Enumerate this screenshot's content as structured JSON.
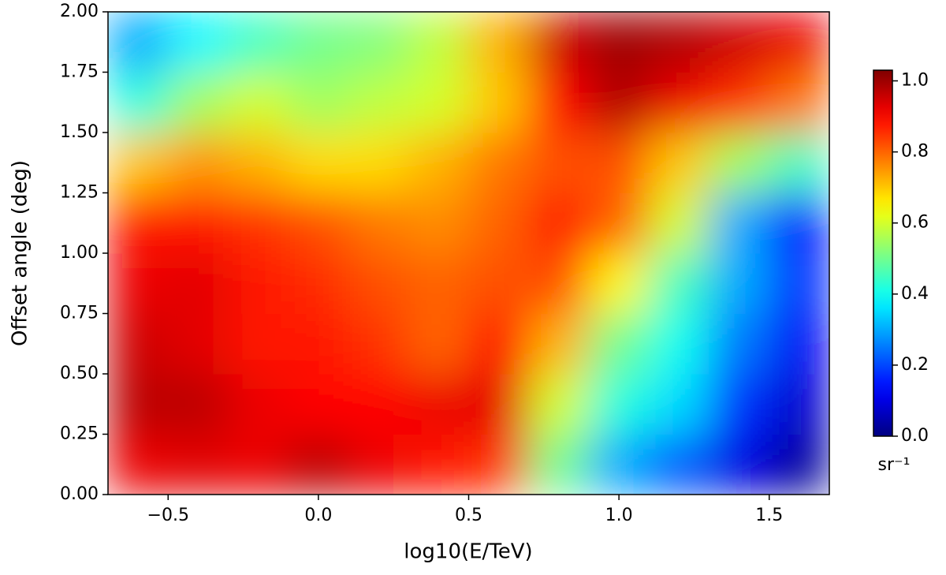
{
  "chart_data": {
    "type": "heatmap",
    "xlabel": "log10(E/TeV)",
    "ylabel": "Offset angle (deg)",
    "colorbar_label": "sr⁻¹",
    "colormap": "jet",
    "x": [
      -0.6,
      -0.4,
      -0.2,
      0.0,
      0.2,
      0.4,
      0.6,
      0.8,
      1.0,
      1.2,
      1.4,
      1.6
    ],
    "y": [
      0.125,
      0.375,
      0.625,
      0.875,
      1.125,
      1.375,
      1.625,
      1.875
    ],
    "z": [
      [
        0.92,
        0.93,
        0.92,
        0.97,
        0.92,
        0.88,
        0.85,
        0.5,
        0.3,
        0.22,
        0.1,
        0.03
      ],
      [
        0.97,
        0.97,
        0.92,
        0.9,
        0.9,
        0.92,
        0.93,
        0.6,
        0.42,
        0.35,
        0.18,
        0.08
      ],
      [
        0.95,
        0.93,
        0.88,
        0.88,
        0.85,
        0.8,
        0.9,
        0.72,
        0.5,
        0.4,
        0.25,
        0.12
      ],
      [
        0.92,
        0.93,
        0.88,
        0.86,
        0.82,
        0.8,
        0.82,
        0.82,
        0.65,
        0.45,
        0.3,
        0.18
      ],
      [
        0.88,
        0.88,
        0.85,
        0.82,
        0.78,
        0.76,
        0.8,
        0.88,
        0.8,
        0.6,
        0.3,
        0.15
      ],
      [
        0.7,
        0.75,
        0.72,
        0.68,
        0.68,
        0.72,
        0.78,
        0.82,
        0.82,
        0.7,
        0.55,
        0.45
      ],
      [
        0.42,
        0.55,
        0.6,
        0.55,
        0.58,
        0.6,
        0.7,
        0.9,
        0.98,
        0.92,
        0.85,
        0.78
      ],
      [
        0.3,
        0.38,
        0.45,
        0.5,
        0.52,
        0.58,
        0.72,
        0.95,
        1.0,
        0.98,
        0.95,
        0.92
      ]
    ],
    "xlim": [
      -0.7,
      1.7
    ],
    "ylim": [
      0,
      2
    ],
    "clim": [
      0,
      1.03
    ],
    "xticks": [
      {
        "value": -0.5,
        "label": "−0.5"
      },
      {
        "value": 0,
        "label": "0.0"
      },
      0.5,
      {
        "value": 1,
        "label": "1.0"
      },
      1.5
    ],
    "yticks": [
      {
        "value": 0,
        "label": "0.00"
      },
      0.25,
      {
        "value": 0.5,
        "label": "0.50"
      },
      0.75,
      {
        "value": 1,
        "label": "1.00"
      },
      1.25,
      {
        "value": 1.5,
        "label": "1.50"
      },
      1.75,
      {
        "value": 2,
        "label": "2.00"
      }
    ],
    "cticks": [
      {
        "value": 0,
        "label": "0.0"
      },
      0.2,
      0.4,
      0.6,
      0.8,
      {
        "value": 1,
        "label": "1.0"
      }
    ]
  }
}
